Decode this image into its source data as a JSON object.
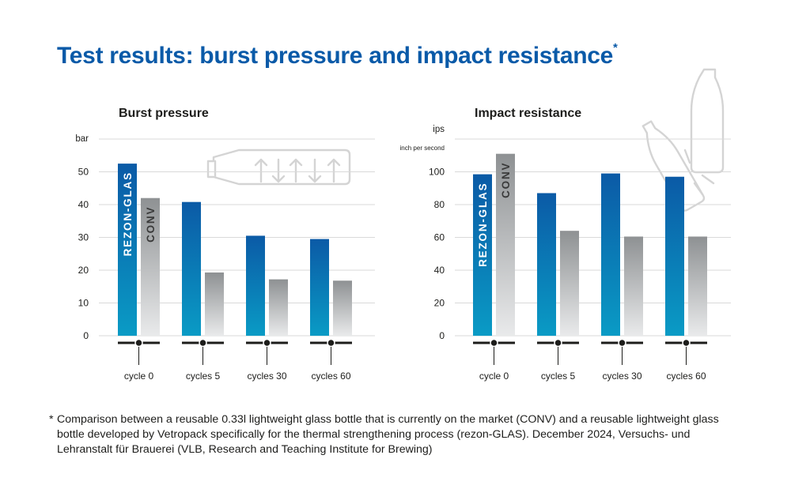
{
  "title": "Test results: burst pressure and impact resistance",
  "title_mark": "*",
  "colors": {
    "title": "#0a5aa8",
    "rezon_top": "#0b5aa6",
    "rezon_bottom": "#0a9bc5",
    "conv_top": "#8e9193",
    "conv_bottom": "#e9eaeb",
    "grid": "#d9d9d9",
    "icon": "#d4d4d4"
  },
  "chart_data": [
    {
      "type": "bar",
      "title": "Burst pressure",
      "ylabel": "bar",
      "ylabel_sub": "",
      "ylim": [
        0,
        60
      ],
      "yticks": [
        0,
        10,
        20,
        30,
        40,
        50
      ],
      "categories": [
        "cycle 0",
        "cycles 5",
        "cycles 30",
        "cycles 60"
      ],
      "series": [
        {
          "name": "REZON-GLAS",
          "values": [
            52.5,
            40.8,
            30.5,
            29.5
          ]
        },
        {
          "name": "CONV",
          "values": [
            42,
            19.3,
            17.2,
            16.8
          ]
        }
      ],
      "grid": true,
      "icon": "bottle-pressure-arrows-icon"
    },
    {
      "type": "bar",
      "title": "Impact resistance",
      "ylabel": "ips",
      "ylabel_sub": "inch per second",
      "ylim": [
        0,
        120
      ],
      "yticks": [
        0,
        20,
        40,
        60,
        80,
        100
      ],
      "categories": [
        "cycle 0",
        "cycles 5",
        "cycles 30",
        "cycles 60"
      ],
      "series": [
        {
          "name": "REZON-GLAS",
          "values": [
            98.5,
            87,
            99,
            97
          ]
        },
        {
          "name": "CONV",
          "values": [
            111,
            64,
            60.5,
            60.5
          ]
        }
      ],
      "grid": true,
      "icon": "bottle-impact-icon"
    }
  ],
  "footnote": {
    "mark": "*",
    "text": "Comparison between a reusable 0.33l lightweight glass bottle that is currently on the market (CONV) and a reusable lightweight glass bottle developed by Vetropack specifically for the thermal strengthening process (rezon-GLAS). December 2024, Versuchs- und Lehranstalt für Brauerei (VLB, Research and Teaching Institute for Brewing)"
  }
}
